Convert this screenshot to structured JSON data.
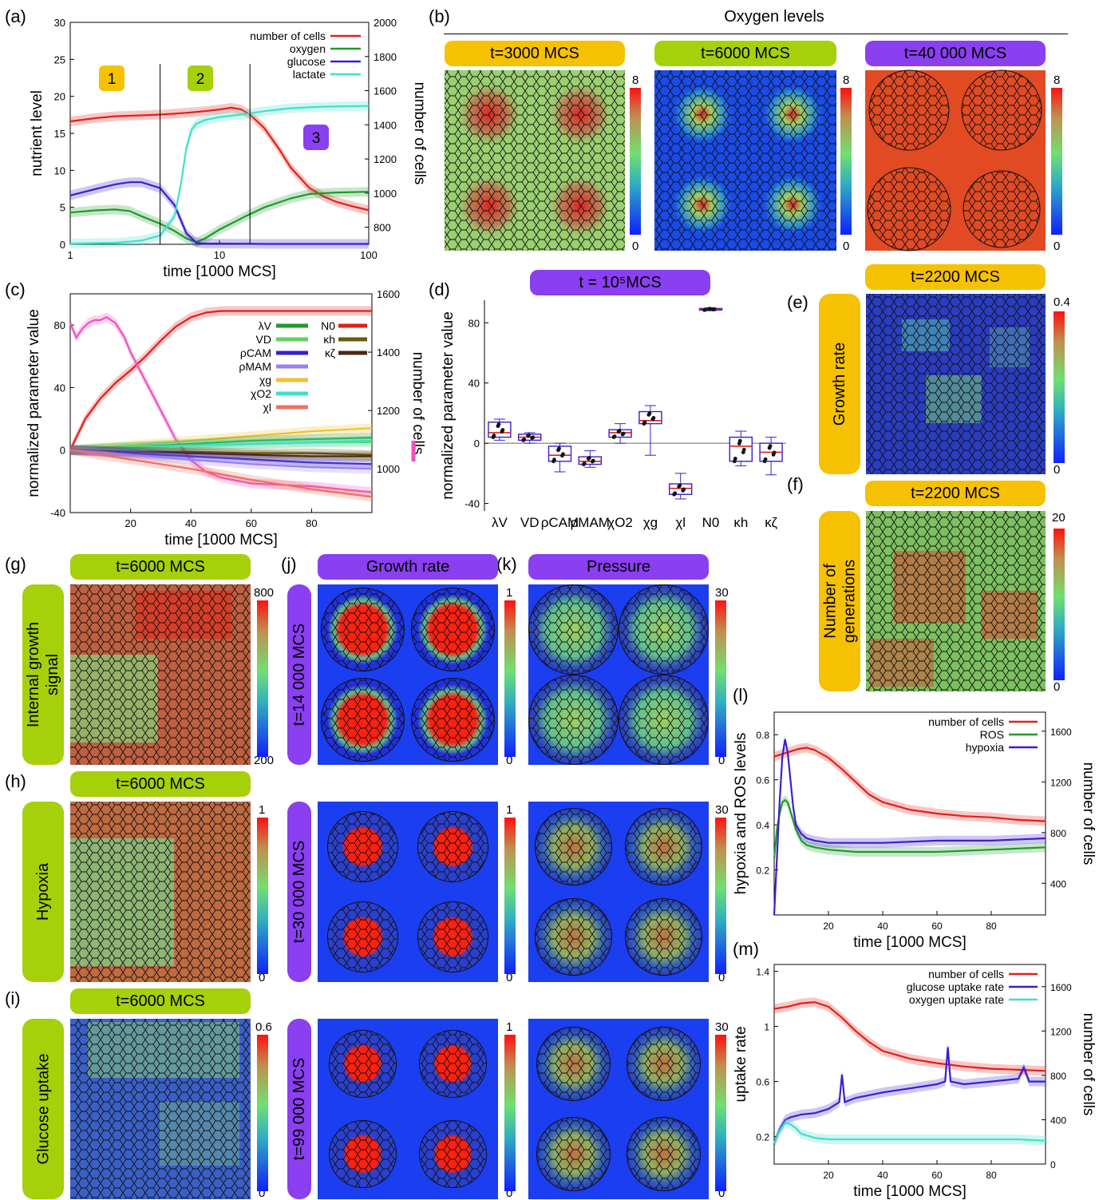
{
  "colors": {
    "yellow": "#f6c100",
    "green": "#a6d00a",
    "purple": "#8a3ff0",
    "red": "#e0201a",
    "ogreen": "#1f9a2b",
    "blue": "#3a1fd0",
    "cyan": "#40e0c8",
    "magenta": "#f050c0"
  },
  "panels": {
    "a": "(a)",
    "b": "(b)",
    "c": "(c)",
    "d": "(d)",
    "e": "(e)",
    "f": "(f)",
    "g": "(g)",
    "h": "(h)",
    "i": "(i)",
    "j": "(j)",
    "k": "(k)",
    "l": "(l)",
    "m": "(m)"
  },
  "b_title": "Oxygen levels",
  "badges": {
    "b1": "t=3000 MCS",
    "b2": "t=6000 MCS",
    "b3": "t=40 000 MCS",
    "d": "t = 10⁵MCS",
    "e": "t=2200 MCS",
    "f": "t=2200 MCS",
    "g": "t=6000 MCS",
    "h": "t=6000 MCS",
    "i": "t=6000 MCS",
    "j": "Growth rate",
    "k": "Pressure",
    "row1": "t=14 000 MCS",
    "row2": "t=30 000 MCS",
    "row3": "t=99 000 MCS",
    "e_side": "Growth rate",
    "f_side": "Number of\ngenerations",
    "g_side": "Internal growth\nsignal",
    "h_side": "Hypoxia",
    "i_side": "Glucose uptake"
  },
  "colorbars": {
    "b": [
      "8",
      "0"
    ],
    "e": [
      "0.4",
      "0"
    ],
    "f": [
      "20",
      "0"
    ],
    "g": [
      "800",
      "200"
    ],
    "h": [
      "1",
      "0"
    ],
    "i": [
      "0.6",
      "0"
    ],
    "j": [
      "1",
      "0"
    ],
    "k": [
      "30",
      "0"
    ]
  },
  "chart_data": [
    {
      "id": "a",
      "type": "line",
      "xscale": "log",
      "xlim": [
        1,
        100
      ],
      "ylim": [
        0,
        30
      ],
      "y2lim": [
        700,
        2000
      ],
      "xlabel": "time [1000 MCS]",
      "ylabel": "nutrient level",
      "y2label": "number of cells",
      "xticks": [
        "1",
        "10",
        "100"
      ],
      "yticks": [
        "0",
        "5",
        "10",
        "15",
        "20",
        "25",
        "30"
      ],
      "y2ticks": [
        "800",
        "1000",
        "1200",
        "1400",
        "1600",
        "1800",
        "2000"
      ],
      "regions": [
        "1",
        "2",
        "3"
      ],
      "vlines": [
        4,
        16
      ],
      "series": [
        {
          "name": "number of cells",
          "axis": "right",
          "x": [
            1,
            1.5,
            2,
            3,
            4,
            5,
            6,
            8,
            10,
            12,
            14,
            16,
            20,
            25,
            30,
            40,
            50,
            60,
            80,
            100
          ],
          "y": [
            1420,
            1440,
            1450,
            1455,
            1460,
            1465,
            1470,
            1480,
            1490,
            1500,
            1490,
            1460,
            1380,
            1260,
            1150,
            1030,
            980,
            950,
            920,
            900
          ]
        },
        {
          "name": "oxygen",
          "axis": "left",
          "x": [
            1,
            1.5,
            2,
            2.5,
            3,
            4,
            5,
            6,
            7,
            8,
            10,
            15,
            20,
            30,
            40,
            60,
            100
          ],
          "y": [
            4.3,
            4.6,
            4.7,
            4.5,
            3.8,
            2.8,
            1.8,
            0.8,
            0.3,
            0.8,
            2.0,
            3.8,
            5.0,
            6.2,
            6.8,
            7.0,
            7.1
          ]
        },
        {
          "name": "glucose",
          "axis": "left",
          "x": [
            1,
            1.5,
            2,
            2.5,
            3,
            4,
            5,
            6,
            7,
            8,
            10,
            20,
            100
          ],
          "y": [
            6.6,
            7.5,
            8.1,
            8.4,
            8.4,
            7.6,
            5.3,
            1.5,
            0.2,
            0.1,
            0.1,
            0.05,
            0.05
          ]
        },
        {
          "name": "lactate",
          "axis": "left",
          "x": [
            1,
            2,
            3,
            4,
            5,
            5.5,
            6,
            6.5,
            7,
            8,
            10,
            15,
            20,
            30,
            50,
            100
          ],
          "y": [
            0.1,
            0.2,
            0.5,
            1.2,
            3.8,
            8,
            13,
            15.5,
            16.3,
            16.8,
            17.2,
            17.6,
            18,
            18.4,
            18.6,
            18.7
          ]
        }
      ]
    },
    {
      "id": "c",
      "type": "line",
      "xlim": [
        0,
        100
      ],
      "ylim": [
        -40,
        100
      ],
      "y2lim": [
        850,
        1600
      ],
      "xlabel": "time [1000 MCS]",
      "ylabel": "normalized parameter value",
      "y2label": "number of cells",
      "xticks": [
        "20",
        "40",
        "60",
        "80"
      ],
      "yticks": [
        "-40",
        "0",
        "40",
        "80"
      ],
      "y2ticks": [
        "1000",
        "1200",
        "1400",
        "1600"
      ],
      "legend": [
        "λV",
        "VD",
        "ρCAM",
        "ρMAM",
        "χg",
        "χO2",
        "χl",
        "N0",
        "κh",
        "κζ"
      ],
      "series": [
        {
          "name": "N0",
          "x": [
            0,
            5,
            10,
            15,
            20,
            25,
            30,
            35,
            40,
            45,
            50,
            60,
            70,
            80,
            100
          ],
          "y": [
            0,
            20,
            33,
            43,
            51,
            60,
            70,
            79,
            85,
            88,
            89,
            89,
            89,
            89,
            89
          ]
        },
        {
          "name": "number of cells",
          "axis": "right",
          "x": [
            0,
            2,
            4,
            6,
            8,
            10,
            12,
            15,
            18,
            20,
            25,
            30,
            35,
            40,
            45,
            50,
            60,
            70,
            80,
            90,
            100
          ],
          "y": [
            1500,
            1450,
            1480,
            1500,
            1510,
            1510,
            1520,
            1500,
            1450,
            1400,
            1300,
            1200,
            1100,
            1030,
            990,
            970,
            950,
            945,
            940,
            930,
            920
          ]
        },
        {
          "name": "χg",
          "x": [
            0,
            20,
            40,
            60,
            80,
            100
          ],
          "y": [
            0,
            3,
            6,
            9,
            12,
            14
          ]
        },
        {
          "name": "λV",
          "x": [
            0,
            20,
            40,
            60,
            80,
            100
          ],
          "y": [
            0,
            2,
            4,
            6,
            7,
            8
          ]
        },
        {
          "name": "VD",
          "x": [
            0,
            20,
            40,
            60,
            80,
            100
          ],
          "y": [
            0,
            2,
            3,
            4,
            5,
            5
          ]
        },
        {
          "name": "χO2",
          "x": [
            0,
            20,
            40,
            60,
            80,
            100
          ],
          "y": [
            0,
            1,
            3,
            4,
            5,
            6
          ]
        },
        {
          "name": "κh",
          "x": [
            0,
            20,
            40,
            60,
            80,
            100
          ],
          "y": [
            0,
            -1,
            -1,
            -2,
            -2,
            -3
          ]
        },
        {
          "name": "κζ",
          "x": [
            0,
            20,
            40,
            60,
            80,
            100
          ],
          "y": [
            0,
            -1,
            -2,
            -3,
            -4,
            -4
          ]
        },
        {
          "name": "ρCAM",
          "x": [
            0,
            20,
            40,
            60,
            80,
            100
          ],
          "y": [
            0,
            -2,
            -4,
            -6,
            -8,
            -9
          ]
        },
        {
          "name": "ρMAM",
          "x": [
            0,
            20,
            40,
            60,
            80,
            100
          ],
          "y": [
            0,
            -3,
            -6,
            -9,
            -11,
            -12
          ]
        },
        {
          "name": "χl",
          "x": [
            0,
            20,
            40,
            60,
            80,
            100
          ],
          "y": [
            0,
            -6,
            -12,
            -19,
            -25,
            -30
          ]
        }
      ]
    },
    {
      "id": "d",
      "type": "box",
      "ylim": [
        -45,
        95
      ],
      "yticks": [
        "-40",
        "0",
        "40",
        "80"
      ],
      "ylabel": "normalized parameter value",
      "categories": [
        "λV",
        "VD",
        "ρCAM",
        "ρMAM",
        "χO2",
        "χg",
        "χl",
        "N0",
        "κh",
        "κζ"
      ],
      "boxes": [
        {
          "min": 2,
          "q1": 4,
          "med": 7,
          "q3": 14,
          "max": 16
        },
        {
          "min": 0,
          "q1": 2,
          "med": 4,
          "q3": 6,
          "max": 7
        },
        {
          "min": -19,
          "q1": -12,
          "med": -8,
          "q3": -2,
          "max": 0
        },
        {
          "min": -16,
          "q1": -14,
          "med": -12,
          "q3": -9,
          "max": -5
        },
        {
          "min": 0,
          "q1": 4,
          "med": 7,
          "q3": 9,
          "max": 13
        },
        {
          "min": -8,
          "q1": 13,
          "med": 15,
          "q3": 21,
          "max": 25
        },
        {
          "min": -37,
          "q1": -34,
          "med": -30,
          "q3": -27,
          "max": -20
        },
        {
          "min": 88,
          "q1": 88.5,
          "med": 89,
          "q3": 89.5,
          "max": 90
        },
        {
          "min": -15,
          "q1": -12,
          "med": -2,
          "q3": 4,
          "max": 8
        },
        {
          "min": -21,
          "q1": -12,
          "med": -6,
          "q3": 0,
          "max": 4
        }
      ]
    },
    {
      "id": "l",
      "type": "line",
      "xlim": [
        0,
        100
      ],
      "ylim": [
        0,
        0.9
      ],
      "y2lim": [
        150,
        1750
      ],
      "xlabel": "time [1000 MCS]",
      "ylabel": "hypoxia and ROS levels",
      "y2label": "number of cells",
      "xticks": [
        "20",
        "40",
        "60",
        "80"
      ],
      "yticks": [
        "0.2",
        "0.4",
        "0.6",
        "0.8"
      ],
      "y2ticks": [
        "400",
        "800",
        "1200",
        "1600"
      ],
      "series": [
        {
          "name": "number of cells",
          "axis": "right",
          "x": [
            0,
            3,
            6,
            9,
            12,
            15,
            20,
            25,
            30,
            35,
            40,
            50,
            60,
            70,
            80,
            90,
            100
          ],
          "y": [
            1400,
            1420,
            1440,
            1460,
            1470,
            1450,
            1390,
            1300,
            1200,
            1100,
            1040,
            980,
            950,
            930,
            920,
            900,
            890
          ]
        },
        {
          "name": "ROS",
          "x": [
            0,
            1,
            2,
            3,
            4,
            5,
            6,
            8,
            10,
            12,
            15,
            20,
            30,
            40,
            60,
            80,
            100
          ],
          "y": [
            0.25,
            0.38,
            0.45,
            0.5,
            0.51,
            0.5,
            0.46,
            0.38,
            0.33,
            0.31,
            0.3,
            0.29,
            0.28,
            0.28,
            0.28,
            0.29,
            0.3
          ]
        },
        {
          "name": "hypoxia",
          "x": [
            0,
            1,
            2,
            3,
            4,
            5,
            6,
            7,
            8,
            10,
            12,
            15,
            20,
            30,
            40,
            60,
            80,
            100
          ],
          "y": [
            0,
            0.25,
            0.5,
            0.7,
            0.78,
            0.72,
            0.6,
            0.48,
            0.4,
            0.36,
            0.34,
            0.33,
            0.32,
            0.32,
            0.32,
            0.33,
            0.33,
            0.34
          ]
        }
      ]
    },
    {
      "id": "m",
      "type": "line",
      "xlim": [
        0,
        100
      ],
      "ylim": [
        0,
        1.45
      ],
      "y2lim": [
        0,
        1800
      ],
      "xlabel": "time [1000 MCS]",
      "ylabel": "uptake rate",
      "y2label": "number of cells",
      "xticks": [
        "20",
        "40",
        "60",
        "80"
      ],
      "yticks": [
        "0.2",
        "0.6",
        "1",
        "1.4"
      ],
      "y2ticks": [
        "0",
        "400",
        "800",
        "1200",
        "1600"
      ],
      "series": [
        {
          "name": "number of cells",
          "axis": "right",
          "x": [
            0,
            5,
            10,
            15,
            20,
            25,
            30,
            35,
            40,
            50,
            60,
            70,
            80,
            90,
            100
          ],
          "y": [
            1400,
            1420,
            1450,
            1460,
            1420,
            1320,
            1200,
            1100,
            1020,
            950,
            910,
            880,
            860,
            850,
            840
          ]
        },
        {
          "name": "glucose uptake rate",
          "x": [
            0,
            2,
            4,
            6,
            10,
            15,
            20,
            24,
            25,
            26,
            30,
            40,
            50,
            60,
            63,
            64,
            65,
            70,
            80,
            90,
            92,
            94,
            100
          ],
          "y": [
            0.15,
            0.25,
            0.32,
            0.34,
            0.36,
            0.37,
            0.4,
            0.45,
            0.65,
            0.45,
            0.48,
            0.52,
            0.55,
            0.58,
            0.6,
            0.85,
            0.6,
            0.58,
            0.6,
            0.62,
            0.7,
            0.6,
            0.6
          ]
        },
        {
          "name": "oxygen uptake rate",
          "x": [
            0,
            2,
            4,
            6,
            8,
            10,
            15,
            20,
            25,
            30,
            40,
            50,
            60,
            70,
            80,
            90,
            100
          ],
          "y": [
            0.15,
            0.24,
            0.3,
            0.29,
            0.26,
            0.22,
            0.19,
            0.18,
            0.18,
            0.18,
            0.18,
            0.18,
            0.18,
            0.18,
            0.18,
            0.18,
            0.17
          ]
        }
      ]
    }
  ]
}
